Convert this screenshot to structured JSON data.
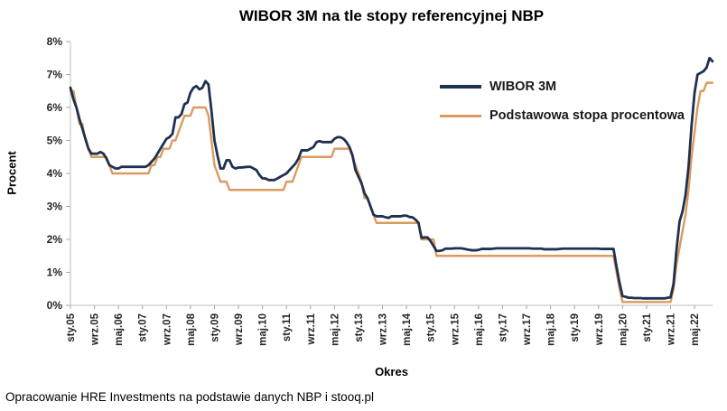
{
  "source_note": "Opracowanie HRE Investments na podstawie danych NBP i stooq.pl",
  "chart_data": {
    "type": "line",
    "title": "WIBOR 3M na tle stopy referencyjnej NBP",
    "xlabel": "Okres",
    "ylabel": "Procent",
    "ylim": [
      0,
      8
    ],
    "grid": false,
    "legend_position": "upper-right-inside",
    "x_start": "sty.05",
    "x_end": "lis.22",
    "x_freq": "monthly",
    "x_tick_every": 8,
    "x_tick_labels": [
      "sty.05",
      "wrz.05",
      "maj.06",
      "sty.07",
      "wrz.07",
      "maj.08",
      "sty.09",
      "wrz.09",
      "maj.10",
      "sty.11",
      "wrz.11",
      "maj.12",
      "sty.13",
      "wrz.13",
      "maj.14",
      "sty.15",
      "wrz.15",
      "maj.16",
      "sty.17",
      "wrz.17",
      "maj.18",
      "sty.19",
      "wrz.19",
      "maj.20",
      "sty.21",
      "wrz.21",
      "maj.22"
    ],
    "y_tick_labels": [
      "0%",
      "1%",
      "2%",
      "3%",
      "4%",
      "5%",
      "6%",
      "7%",
      "8%"
    ],
    "series": [
      {
        "name": "WIBOR 3M",
        "color": "#1f3150",
        "width": 2.8,
        "values": [
          6.6,
          6.25,
          6.0,
          5.65,
          5.35,
          5.05,
          4.75,
          4.6,
          4.6,
          4.6,
          4.65,
          4.6,
          4.45,
          4.25,
          4.2,
          4.15,
          4.15,
          4.2,
          4.2,
          4.2,
          4.2,
          4.2,
          4.2,
          4.2,
          4.2,
          4.2,
          4.25,
          4.35,
          4.45,
          4.6,
          4.75,
          4.9,
          5.05,
          5.1,
          5.2,
          5.7,
          5.7,
          5.8,
          6.1,
          6.15,
          6.45,
          6.6,
          6.65,
          6.55,
          6.6,
          6.8,
          6.7,
          5.9,
          5.0,
          4.55,
          4.15,
          4.15,
          4.4,
          4.4,
          4.2,
          4.15,
          4.18,
          4.18,
          4.19,
          4.2,
          4.2,
          4.15,
          4.1,
          3.95,
          3.85,
          3.85,
          3.8,
          3.8,
          3.8,
          3.85,
          3.9,
          3.95,
          4.0,
          4.1,
          4.2,
          4.3,
          4.45,
          4.7,
          4.7,
          4.7,
          4.75,
          4.8,
          4.95,
          4.98,
          4.95,
          4.95,
          4.95,
          4.95,
          5.05,
          5.1,
          5.1,
          5.05,
          4.95,
          4.8,
          4.55,
          4.1,
          3.9,
          3.7,
          3.4,
          3.25,
          3.0,
          2.75,
          2.7,
          2.7,
          2.7,
          2.67,
          2.65,
          2.7,
          2.7,
          2.7,
          2.7,
          2.72,
          2.72,
          2.68,
          2.67,
          2.6,
          2.5,
          2.05,
          2.06,
          2.06,
          1.95,
          1.8,
          1.65,
          1.65,
          1.67,
          1.72,
          1.72,
          1.72,
          1.73,
          1.73,
          1.73,
          1.72,
          1.7,
          1.68,
          1.67,
          1.67,
          1.68,
          1.71,
          1.71,
          1.71,
          1.71,
          1.72,
          1.73,
          1.73,
          1.73,
          1.73,
          1.73,
          1.73,
          1.73,
          1.73,
          1.73,
          1.73,
          1.73,
          1.73,
          1.72,
          1.72,
          1.72,
          1.72,
          1.7,
          1.7,
          1.7,
          1.7,
          1.7,
          1.71,
          1.72,
          1.72,
          1.72,
          1.72,
          1.72,
          1.72,
          1.72,
          1.72,
          1.72,
          1.72,
          1.72,
          1.72,
          1.72,
          1.71,
          1.71,
          1.71,
          1.71,
          1.71,
          1.17,
          0.68,
          0.28,
          0.26,
          0.23,
          0.23,
          0.22,
          0.22,
          0.22,
          0.21,
          0.21,
          0.21,
          0.21,
          0.21,
          0.21,
          0.21,
          0.21,
          0.23,
          0.24,
          0.65,
          1.7,
          2.54,
          2.85,
          3.35,
          4.2,
          5.45,
          6.45,
          7.0,
          7.05,
          7.1,
          7.21,
          7.5,
          7.4
        ]
      },
      {
        "name": "Podstawowa stopa procentowa",
        "color": "#db9a5e",
        "width": 2.4,
        "values": [
          6.5,
          6.5,
          6.0,
          5.5,
          5.5,
          5.0,
          4.75,
          4.5,
          4.5,
          4.5,
          4.5,
          4.5,
          4.5,
          4.25,
          4.0,
          4.0,
          4.0,
          4.0,
          4.0,
          4.0,
          4.0,
          4.0,
          4.0,
          4.0,
          4.0,
          4.0,
          4.0,
          4.25,
          4.25,
          4.5,
          4.5,
          4.75,
          4.75,
          4.75,
          5.0,
          5.0,
          5.25,
          5.5,
          5.75,
          5.75,
          5.75,
          6.0,
          6.0,
          6.0,
          6.0,
          6.0,
          5.75,
          5.0,
          4.25,
          4.0,
          3.75,
          3.75,
          3.75,
          3.5,
          3.5,
          3.5,
          3.5,
          3.5,
          3.5,
          3.5,
          3.5,
          3.5,
          3.5,
          3.5,
          3.5,
          3.5,
          3.5,
          3.5,
          3.5,
          3.5,
          3.5,
          3.5,
          3.75,
          3.75,
          3.75,
          4.0,
          4.25,
          4.5,
          4.5,
          4.5,
          4.5,
          4.5,
          4.5,
          4.5,
          4.5,
          4.5,
          4.5,
          4.5,
          4.75,
          4.75,
          4.75,
          4.75,
          4.75,
          4.75,
          4.5,
          4.25,
          4.0,
          3.75,
          3.25,
          3.25,
          3.0,
          2.75,
          2.5,
          2.5,
          2.5,
          2.5,
          2.5,
          2.5,
          2.5,
          2.5,
          2.5,
          2.5,
          2.5,
          2.5,
          2.5,
          2.5,
          2.5,
          2.0,
          2.0,
          2.0,
          2.0,
          2.0,
          1.5,
          1.5,
          1.5,
          1.5,
          1.5,
          1.5,
          1.5,
          1.5,
          1.5,
          1.5,
          1.5,
          1.5,
          1.5,
          1.5,
          1.5,
          1.5,
          1.5,
          1.5,
          1.5,
          1.5,
          1.5,
          1.5,
          1.5,
          1.5,
          1.5,
          1.5,
          1.5,
          1.5,
          1.5,
          1.5,
          1.5,
          1.5,
          1.5,
          1.5,
          1.5,
          1.5,
          1.5,
          1.5,
          1.5,
          1.5,
          1.5,
          1.5,
          1.5,
          1.5,
          1.5,
          1.5,
          1.5,
          1.5,
          1.5,
          1.5,
          1.5,
          1.5,
          1.5,
          1.5,
          1.5,
          1.5,
          1.5,
          1.5,
          1.5,
          1.5,
          1.0,
          0.5,
          0.1,
          0.1,
          0.1,
          0.1,
          0.1,
          0.1,
          0.1,
          0.1,
          0.1,
          0.1,
          0.1,
          0.1,
          0.1,
          0.1,
          0.1,
          0.1,
          0.1,
          0.5,
          1.25,
          1.75,
          2.25,
          2.75,
          3.5,
          4.5,
          5.25,
          6.0,
          6.5,
          6.5,
          6.75,
          6.75,
          6.75
        ]
      }
    ]
  }
}
